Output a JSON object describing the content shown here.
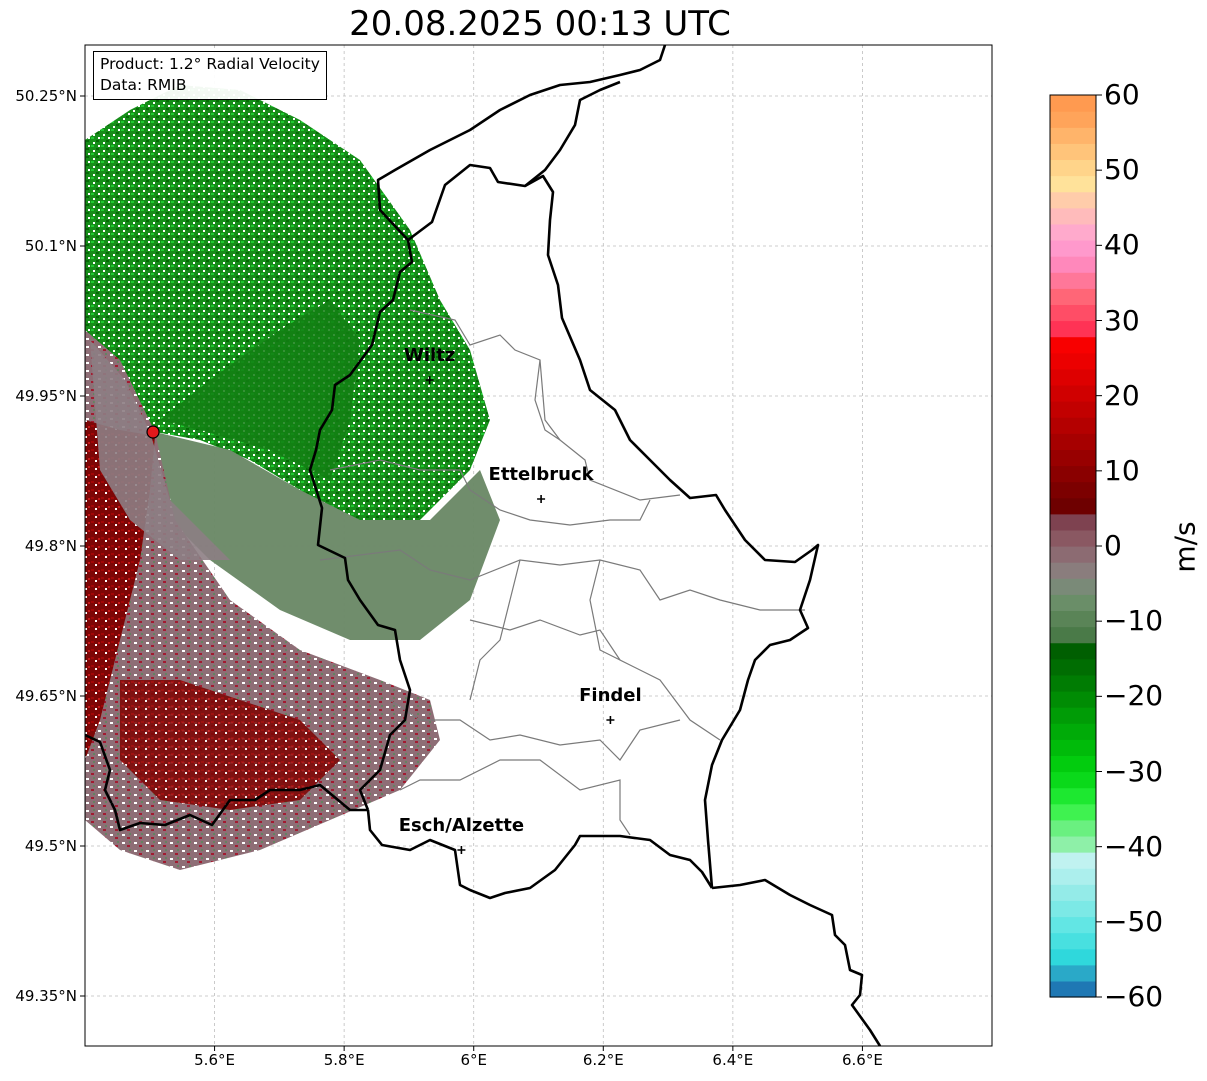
{
  "title": "20.08.2025 00:13 UTC",
  "info": {
    "product": "Product: 1.2° Radial Velocity",
    "data_source": "Data: RMIB"
  },
  "map": {
    "lat_ticks": [
      "50.25°N",
      "50.1°N",
      "49.95°N",
      "49.8°N",
      "49.65°N",
      "49.5°N",
      "49.35°N"
    ],
    "lon_ticks": [
      "5.6°E",
      "5.8°E",
      "6°E",
      "6.2°E",
      "6.4°E",
      "6.6°E"
    ],
    "extent": {
      "lon_min": 5.4,
      "lon_max": 6.8,
      "lat_min": 49.3,
      "lat_max": 50.3
    },
    "radar_site": {
      "lon": 5.505,
      "lat": 49.914,
      "color": "#e31a1c"
    },
    "cities": [
      {
        "name": "Wiltz",
        "lon": 5.932,
        "lat": 49.966
      },
      {
        "name": "Ettelbruck",
        "lon": 6.104,
        "lat": 49.847
      },
      {
        "name": "Findel",
        "lon": 6.211,
        "lat": 49.626
      },
      {
        "name": "Esch/Alzette",
        "lon": 5.981,
        "lat": 49.496
      }
    ]
  },
  "colorbar": {
    "label": "m/s",
    "ticks": [
      "60",
      "50",
      "40",
      "30",
      "20",
      "10",
      "0",
      "−10",
      "−20",
      "−30",
      "−40",
      "−50",
      "−60"
    ],
    "range": [
      -60,
      60
    ],
    "colors_bottom_to_top": [
      "#1f78b4",
      "#2aa9c8",
      "#2fd8dc",
      "#48e0e0",
      "#62e6e4",
      "#7ce9e6",
      "#94ebe8",
      "#acefed",
      "#c0f2f0",
      "#8ef0a8",
      "#6af080",
      "#3ff250",
      "#1de830",
      "#0ad91a",
      "#02cc0e",
      "#00bb0a",
      "#00ab08",
      "#009c06",
      "#008c04",
      "#007c03",
      "#006d02",
      "#005f01",
      "#4a7a48",
      "#5a8457",
      "#6a8e68",
      "#7a8a78",
      "#8a7d7d",
      "#8c6b72",
      "#8a5862",
      "#7e4250",
      "#6e0000",
      "#7c0000",
      "#8a0000",
      "#980000",
      "#a60000",
      "#b40000",
      "#c20000",
      "#d00000",
      "#de0000",
      "#ec0000",
      "#f80000",
      "#ff3355",
      "#ff4d66",
      "#ff6677",
      "#ff7799",
      "#ff88bb",
      "#ff99cc",
      "#ffaacc",
      "#ffbbbb",
      "#ffccaa",
      "#ffe29a",
      "#ffd48a",
      "#ffc47a",
      "#ffb46a",
      "#ffa45a",
      "#ff9a50"
    ]
  },
  "colors": {
    "inbound_green": "#1a9a1a",
    "outbound_red": "#8b0000",
    "near_zero_grey": "#7d8a78"
  }
}
